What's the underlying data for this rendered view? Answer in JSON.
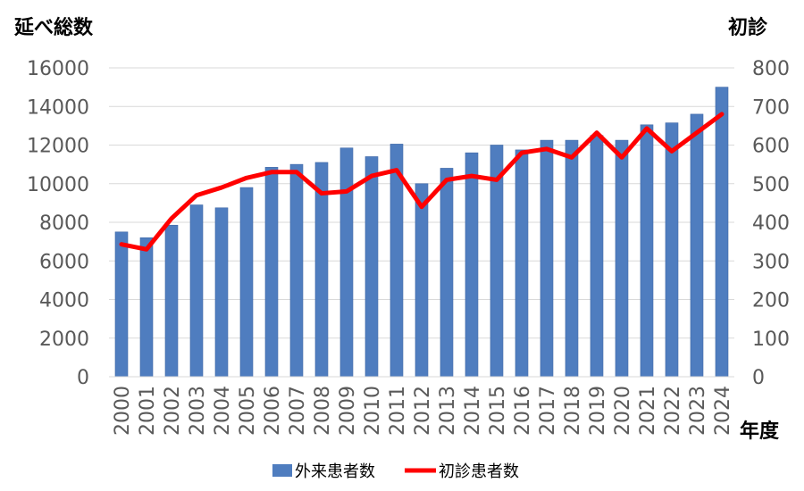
{
  "chart_data": {
    "type": "bar",
    "title": "",
    "ylabel": "延べ総数",
    "y2label": "初診",
    "xlabel": "年度",
    "ylim": [
      0,
      16000
    ],
    "y2lim": [
      0,
      800
    ],
    "yticks": [
      "0",
      "2000",
      "4000",
      "6000",
      "8000",
      "10000",
      "12000",
      "14000",
      "16000"
    ],
    "y2ticks": [
      "0",
      "100",
      "200",
      "300",
      "400",
      "500",
      "600",
      "700",
      "800"
    ],
    "grid": true,
    "legend_position": "bottom",
    "categories": [
      "2000",
      "2001",
      "2002",
      "2003",
      "2004",
      "2005",
      "2006",
      "2007",
      "2008",
      "2009",
      "2010",
      "2011",
      "2012",
      "2013",
      "2014",
      "2015",
      "2016",
      "2017",
      "2018",
      "2019",
      "2020",
      "2021",
      "2022",
      "2023",
      "2024"
    ],
    "series": [
      {
        "name": "外来患者数",
        "type": "bar",
        "axis": "left",
        "color": "#4F7DBF",
        "values": [
          7500,
          7200,
          7850,
          8900,
          8750,
          9800,
          10850,
          11000,
          11100,
          11850,
          11400,
          12050,
          10000,
          10800,
          11600,
          12000,
          11750,
          12250,
          12250,
          12500,
          12250,
          13050,
          13150,
          13600,
          15000
        ]
      },
      {
        "name": "初診患者数",
        "type": "line",
        "axis": "right",
        "color": "#FF0000",
        "values": [
          343,
          330,
          410,
          470,
          490,
          515,
          530,
          530,
          475,
          480,
          520,
          535,
          440,
          510,
          520,
          510,
          580,
          590,
          568,
          632,
          568,
          643,
          584,
          632,
          680
        ]
      }
    ]
  }
}
